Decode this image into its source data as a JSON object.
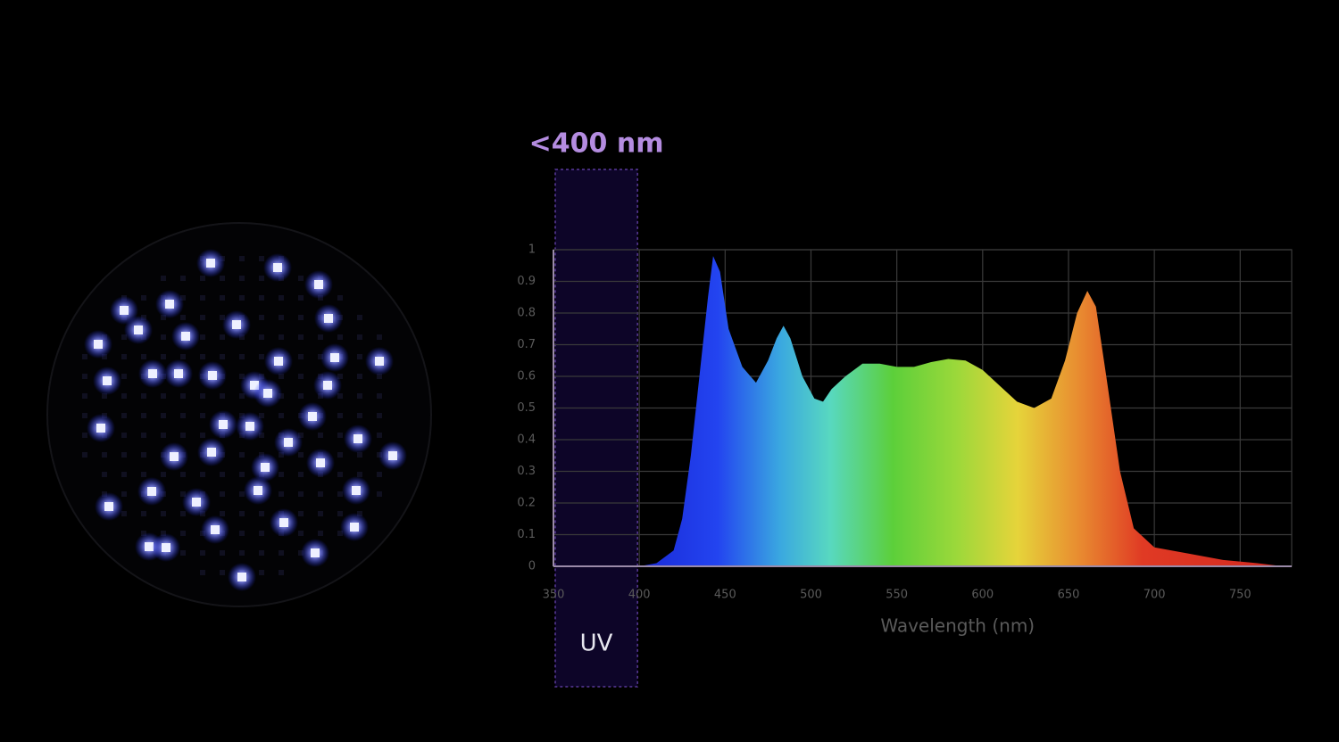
{
  "chart_data": {
    "type": "area",
    "x_label": "Wavelength (nm)",
    "x": [
      400,
      410,
      420,
      425,
      430,
      435,
      440,
      443,
      447,
      452,
      460,
      468,
      475,
      480,
      484,
      488,
      495,
      502,
      507,
      512,
      520,
      530,
      540,
      550,
      560,
      570,
      580,
      590,
      600,
      610,
      620,
      630,
      640,
      648,
      655,
      661,
      666,
      672,
      680,
      688,
      700,
      720,
      740,
      760,
      775
    ],
    "values": [
      0,
      0.01,
      0.05,
      0.15,
      0.35,
      0.6,
      0.85,
      0.98,
      0.93,
      0.75,
      0.63,
      0.58,
      0.65,
      0.72,
      0.76,
      0.72,
      0.6,
      0.53,
      0.52,
      0.56,
      0.6,
      0.64,
      0.64,
      0.63,
      0.63,
      0.645,
      0.655,
      0.65,
      0.62,
      0.57,
      0.52,
      0.5,
      0.53,
      0.65,
      0.8,
      0.87,
      0.82,
      0.6,
      0.3,
      0.12,
      0.06,
      0.04,
      0.02,
      0.01,
      0
    ],
    "xlim": [
      350,
      780
    ],
    "ylim": [
      0,
      1
    ],
    "xticks": [
      350,
      400,
      450,
      500,
      550,
      600,
      650,
      700,
      750
    ],
    "yticks": [
      0,
      0.1,
      0.2,
      0.3,
      0.4,
      0.5,
      0.6,
      0.7,
      0.8,
      0.9,
      1
    ],
    "grid": true,
    "highlight": {
      "range": [
        350,
        400
      ],
      "title": "<400 nm",
      "label": "UV"
    }
  }
}
